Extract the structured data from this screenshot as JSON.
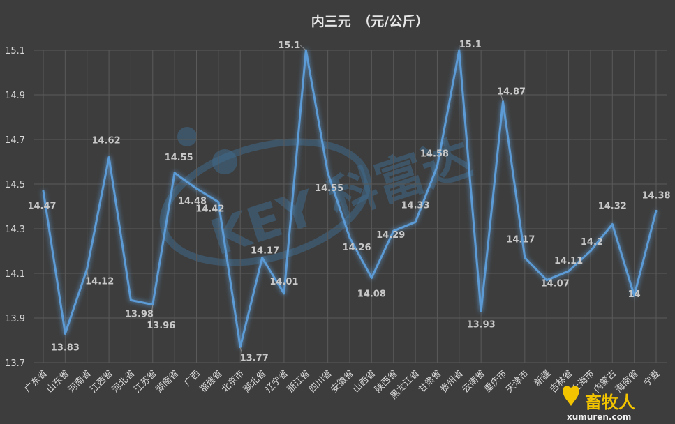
{
  "chart_data": {
    "type": "line",
    "title": "内三元　（元/公斤）",
    "xlabel": "",
    "ylabel": "",
    "ylim": [
      13.7,
      15.1
    ],
    "yticks": [
      "13.7",
      "13.9",
      "14.1",
      "14.3",
      "14.5",
      "14.7",
      "14.9",
      "15.1"
    ],
    "grid": true,
    "categories": [
      "广东省",
      "山东省",
      "河南省",
      "江西省",
      "河北省",
      "江苏省",
      "湖南省",
      "广西",
      "福建省",
      "北京市",
      "湖北省",
      "辽宁省",
      "浙江省",
      "四川省",
      "安徽省",
      "山西省",
      "陕西省",
      "黑龙江省",
      "甘肃省",
      "贵州省",
      "云南省",
      "重庆市",
      "天津市",
      "新疆",
      "吉林省",
      "上海市",
      "内蒙古",
      "海南省",
      "宁夏"
    ],
    "values": [
      14.47,
      13.83,
      14.12,
      14.62,
      13.98,
      13.96,
      14.55,
      14.48,
      14.42,
      13.77,
      14.17,
      14.01,
      15.1,
      14.55,
      14.26,
      14.08,
      14.29,
      14.33,
      14.58,
      15.1,
      13.93,
      14.87,
      14.17,
      14.07,
      14.11,
      14.2,
      14.32,
      14.0,
      14.38
    ],
    "data_labels": [
      "14.47",
      "13.83",
      "14.12",
      "14.62",
      "13.98",
      "13.96",
      "14.55",
      "14.48",
      "14.42",
      "13.77",
      "14.17",
      "14.01",
      "15.1",
      "14.55",
      "14.26",
      "14.08",
      "14.29",
      "14.33",
      "14.58",
      "15.1",
      "13.93",
      "14.87",
      "14.17",
      "14.07",
      "14.11",
      "14.2",
      "14.32",
      "14",
      "14.38"
    ],
    "line_color": "#5b9bd5"
  },
  "watermark": {
    "text": "KEY 科富达"
  },
  "logo": {
    "text": "畜牧人",
    "site": "xumuren.com",
    "color": "#f2c400"
  }
}
